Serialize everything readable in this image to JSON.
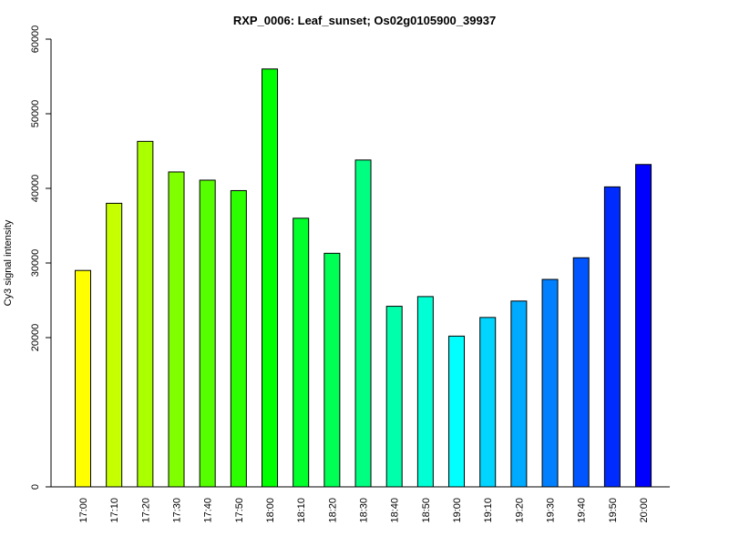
{
  "chart_data": {
    "type": "bar",
    "title": "RXP_0006: Leaf_sunset; Os02g0105900_39937",
    "xlabel": "",
    "ylabel": "Cy3 signal intensity",
    "ylim": [
      0,
      60000
    ],
    "yticks": [
      0,
      20000,
      30000,
      40000,
      50000,
      60000
    ],
    "ytick_labels": [
      "0",
      "20000",
      "30000",
      "40000",
      "50000",
      "60000"
    ],
    "categories": [
      "17:00",
      "17:10",
      "17:20",
      "17:30",
      "17:40",
      "17:50",
      "18:00",
      "18:10",
      "18:20",
      "18:30",
      "18:40",
      "18:50",
      "19:00",
      "19:10",
      "19:20",
      "19:30",
      "19:40",
      "19:50",
      "20:00"
    ],
    "values": [
      29000,
      38000,
      46300,
      42200,
      41100,
      39700,
      56000,
      36000,
      31300,
      43800,
      24200,
      25500,
      20200,
      22700,
      24900,
      27800,
      30700,
      40200,
      43200
    ],
    "colors": [
      "#FFFF00",
      "#C6FF00",
      "#AAFF00",
      "#80FF00",
      "#55FF00",
      "#2BFF00",
      "#00FF00",
      "#00FF2B",
      "#00FF55",
      "#00FF80",
      "#00FFAA",
      "#00FFD4",
      "#00FFFF",
      "#00D4FF",
      "#00AAFF",
      "#0080FF",
      "#0055FF",
      "#002BFF",
      "#0000FF"
    ],
    "grid": false,
    "legend": "none"
  }
}
